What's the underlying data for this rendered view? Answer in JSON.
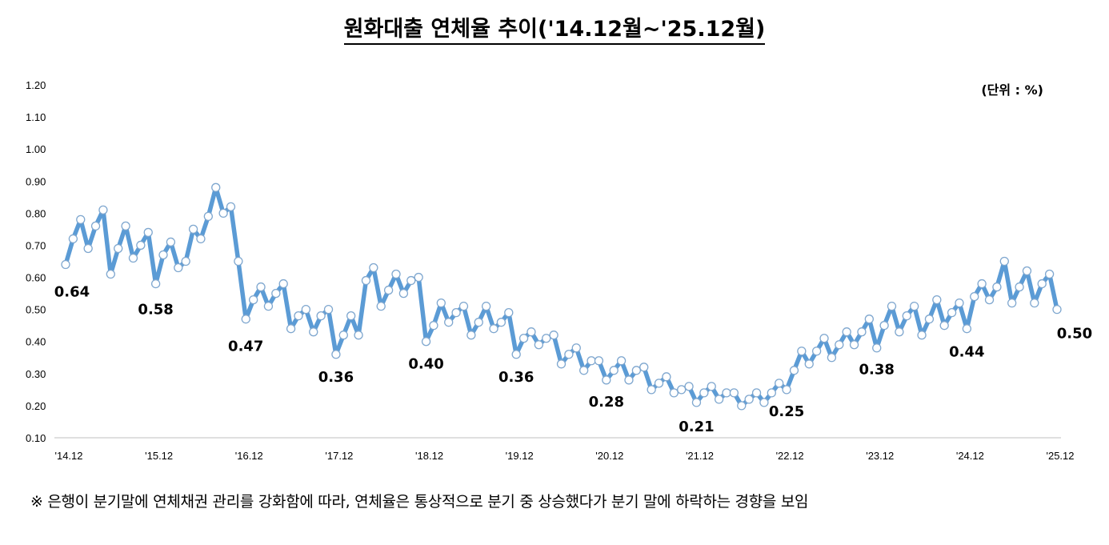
{
  "title": "원화대출 연체율 추이('14.12월~'25.12월)",
  "unit_label": "(단위 : %)",
  "footnote": "※ 은행이 분기말에 연체채권 관리를 강화함에 따라, 연체율은 통상적으로 분기 중 상승했다가 분기 말에 하락하는 경향을 보임",
  "chart_data": {
    "type": "line",
    "title": "원화대출 연체율 추이('14.12월~'25.12월)",
    "xlabel": "",
    "ylabel": "",
    "unit": "%",
    "ylim": [
      0.1,
      1.2
    ],
    "y_ticks": [
      "0.10",
      "0.20",
      "0.30",
      "0.40",
      "0.50",
      "0.60",
      "0.70",
      "0.80",
      "0.90",
      "1.00",
      "1.10",
      "1.20"
    ],
    "x_ticks": [
      "'14.12",
      "'15.12",
      "'16.12",
      "'17.12",
      "'18.12",
      "'19.12",
      "'20.12",
      "'21.12",
      "'22.12",
      "'23.12",
      "'24.12",
      "'25.12"
    ],
    "x_range": [
      "2014-12",
      "2025-12"
    ],
    "frequency": "monthly",
    "grid": false,
    "line_color": "#5b9bd5",
    "marker_fill": "#ffffff",
    "values": [
      0.64,
      0.72,
      0.78,
      0.69,
      0.76,
      0.81,
      0.61,
      0.69,
      0.76,
      0.66,
      0.7,
      0.74,
      0.58,
      0.67,
      0.71,
      0.63,
      0.65,
      0.75,
      0.72,
      0.79,
      0.88,
      0.8,
      0.82,
      0.65,
      0.47,
      0.53,
      0.57,
      0.51,
      0.55,
      0.58,
      0.44,
      0.48,
      0.5,
      0.43,
      0.48,
      0.5,
      0.36,
      0.42,
      0.48,
      0.42,
      0.59,
      0.63,
      0.51,
      0.56,
      0.61,
      0.55,
      0.59,
      0.6,
      0.4,
      0.45,
      0.52,
      0.46,
      0.49,
      0.51,
      0.42,
      0.46,
      0.51,
      0.44,
      0.46,
      0.49,
      0.36,
      0.41,
      0.43,
      0.39,
      0.41,
      0.42,
      0.33,
      0.36,
      0.38,
      0.31,
      0.34,
      0.34,
      0.28,
      0.31,
      0.34,
      0.28,
      0.31,
      0.32,
      0.25,
      0.27,
      0.29,
      0.24,
      0.25,
      0.26,
      0.21,
      0.24,
      0.26,
      0.22,
      0.24,
      0.24,
      0.2,
      0.22,
      0.24,
      0.21,
      0.24,
      0.27,
      0.25,
      0.31,
      0.37,
      0.33,
      0.37,
      0.41,
      0.35,
      0.39,
      0.43,
      0.39,
      0.43,
      0.47,
      0.38,
      0.45,
      0.51,
      0.43,
      0.48,
      0.51,
      0.42,
      0.47,
      0.53,
      0.45,
      0.49,
      0.52,
      0.44,
      0.54,
      0.58,
      0.53,
      0.57,
      0.65,
      0.52,
      0.57,
      0.62,
      0.52,
      0.58,
      0.61,
      0.5
    ],
    "data_labels": [
      {
        "x": "'14.12",
        "value": "0.64"
      },
      {
        "x": "'15.12",
        "value": "0.58"
      },
      {
        "x": "'16.12",
        "value": "0.47"
      },
      {
        "x": "'17.12",
        "value": "0.36"
      },
      {
        "x": "'18.12",
        "value": "0.40"
      },
      {
        "x": "'19.12",
        "value": "0.36"
      },
      {
        "x": "'20.12",
        "value": "0.28"
      },
      {
        "x": "'21.12",
        "value": "0.21"
      },
      {
        "x": "'22.12",
        "value": "0.25"
      },
      {
        "x": "'23.12",
        "value": "0.38"
      },
      {
        "x": "'24.12",
        "value": "0.44"
      },
      {
        "x": "'25.12",
        "value": "0.50"
      }
    ]
  }
}
